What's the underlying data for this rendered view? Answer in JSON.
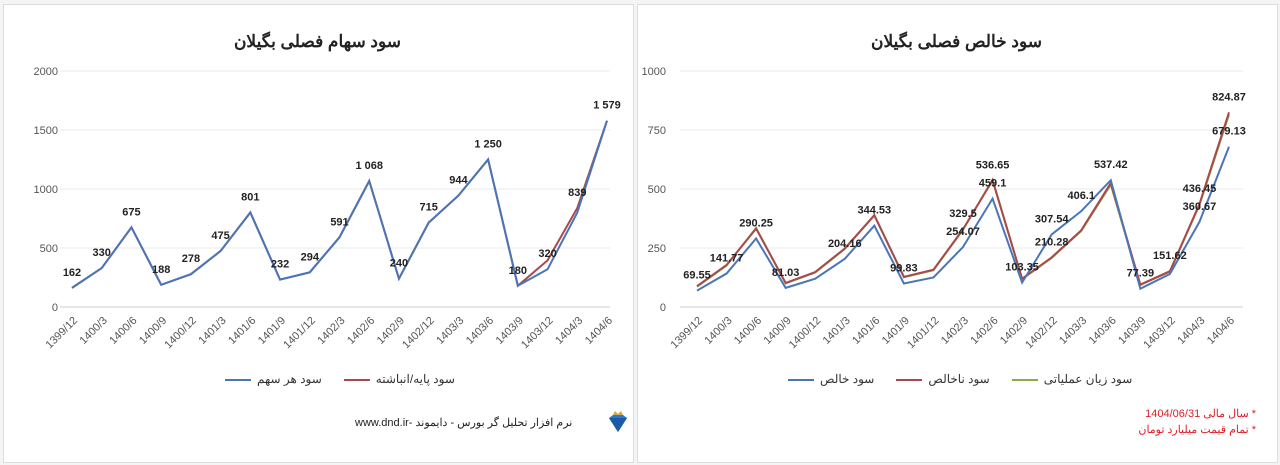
{
  "chart_data": [
    {
      "type": "line",
      "title": "سود سهام فصلی بگیلان",
      "categories": [
        "1399/12",
        "1400/3",
        "1400/6",
        "1400/9",
        "1400/12",
        "1401/3",
        "1401/6",
        "1401/9",
        "1401/12",
        "1402/3",
        "1402/6",
        "1402/9",
        "1402/12",
        "1403/3",
        "1403/6",
        "1403/9",
        "1403/12",
        "1404/3",
        "1404/6"
      ],
      "ylim": [
        0,
        2000
      ],
      "yticks": [
        0,
        500,
        1000,
        1500,
        2000
      ],
      "grid": true,
      "legend": "bottom",
      "series": [
        {
          "name": "سود هر سهم",
          "color": "#4a76b8",
          "values": [
            162,
            330,
            675,
            188,
            278,
            475,
            801,
            232,
            294,
            591,
            1068,
            240,
            715,
            944,
            1250,
            180,
            320,
            800,
            1579
          ]
        },
        {
          "name": "سود پایه/انباشته",
          "color": "#a8494b",
          "values": [
            162,
            330,
            675,
            188,
            278,
            475,
            801,
            232,
            294,
            591,
            1068,
            240,
            715,
            944,
            1250,
            180,
            395,
            839,
            1579
          ]
        }
      ],
      "labels": [
        {
          "i": 0,
          "s": 1,
          "text": "162"
        },
        {
          "i": 1,
          "s": 1,
          "text": "330"
        },
        {
          "i": 2,
          "s": 1,
          "text": "675"
        },
        {
          "i": 3,
          "s": 1,
          "text": "188"
        },
        {
          "i": 4,
          "s": 1,
          "text": "278"
        },
        {
          "i": 5,
          "s": 1,
          "text": "475"
        },
        {
          "i": 6,
          "s": 1,
          "text": "801"
        },
        {
          "i": 7,
          "s": 1,
          "text": "232"
        },
        {
          "i": 8,
          "s": 1,
          "text": "294"
        },
        {
          "i": 9,
          "s": 1,
          "text": "591"
        },
        {
          "i": 10,
          "s": 1,
          "text": "1 068"
        },
        {
          "i": 11,
          "s": 1,
          "text": "240"
        },
        {
          "i": 12,
          "s": 1,
          "text": "715"
        },
        {
          "i": 13,
          "s": 1,
          "text": "944"
        },
        {
          "i": 14,
          "s": 1,
          "text": "1 250"
        },
        {
          "i": 15,
          "s": 1,
          "text": "180"
        },
        {
          "i": 16,
          "s": 0,
          "text": "320"
        },
        {
          "i": 17,
          "s": 1,
          "text": "839"
        },
        {
          "i": 18,
          "s": 1,
          "text": "1 579"
        }
      ]
    },
    {
      "type": "line",
      "title": "سود خالص فصلی بگیلان",
      "categories": [
        "1399/12",
        "1400/3",
        "1400/6",
        "1400/9",
        "1400/12",
        "1401/3",
        "1401/6",
        "1401/9",
        "1401/12",
        "1402/3",
        "1402/6",
        "1402/9",
        "1402/12",
        "1403/3",
        "1403/6",
        "1403/9",
        "1403/12",
        "1404/3",
        "1404/6"
      ],
      "ylim": [
        0,
        1000
      ],
      "yticks": [
        0,
        250,
        500,
        750,
        1000
      ],
      "grid": true,
      "legend": "bottom",
      "series": [
        {
          "name": "سود خالص",
          "color": "#4a76b8",
          "values": [
            69.55,
            141.77,
            290.25,
            81.03,
            120,
            204.16,
            344.53,
            99.83,
            125,
            254.07,
            459.1,
            103.35,
            307.54,
            406.1,
            537.42,
            77.39,
            140,
            360.67,
            679.13
          ]
        },
        {
          "name": "سود ناخالص",
          "color": "#a8494b",
          "values": [
            88,
            178,
            332,
            102,
            148,
            248,
            388,
            128,
            158,
            329.5,
            536.65,
            120,
            210.28,
            325,
            525,
            95,
            151.62,
            436.45,
            824.87
          ]
        },
        {
          "name": "سود زیان عملیاتی",
          "color": "#8faa4a",
          "values": [
            86,
            176,
            335,
            100,
            146,
            246,
            390,
            126,
            156,
            327,
            540,
            118,
            208,
            322,
            518,
            93,
            150,
            432,
            815
          ]
        }
      ],
      "labels": [
        {
          "i": 0,
          "s": 0,
          "text": "69.55"
        },
        {
          "i": 1,
          "s": 0,
          "text": "141.77"
        },
        {
          "i": 2,
          "s": 0,
          "text": "290.25"
        },
        {
          "i": 3,
          "s": 0,
          "text": "81.03"
        },
        {
          "i": 5,
          "s": 0,
          "text": "204.16"
        },
        {
          "i": 6,
          "s": 0,
          "text": "344.53"
        },
        {
          "i": 7,
          "s": 0,
          "text": "99.83"
        },
        {
          "i": 9,
          "s": 1,
          "text": "329.5"
        },
        {
          "i": 9,
          "s": 0,
          "text": "254.07"
        },
        {
          "i": 10,
          "s": 1,
          "text": "536.65"
        },
        {
          "i": 10,
          "s": 0,
          "text": "459.1"
        },
        {
          "i": 11,
          "s": 0,
          "text": "103.35"
        },
        {
          "i": 12,
          "s": 0,
          "text": "307.54"
        },
        {
          "i": 12,
          "s": 1,
          "text": "210.28"
        },
        {
          "i": 13,
          "s": 0,
          "text": "406.1"
        },
        {
          "i": 14,
          "s": 0,
          "text": "537.42"
        },
        {
          "i": 15,
          "s": 0,
          "text": "77.39"
        },
        {
          "i": 16,
          "s": 1,
          "text": "151.62"
        },
        {
          "i": 17,
          "s": 1,
          "text": "436.45"
        },
        {
          "i": 17,
          "s": 0,
          "text": "360.67"
        },
        {
          "i": 18,
          "s": 1,
          "text": "824.87"
        },
        {
          "i": 18,
          "s": 0,
          "text": "679.13"
        }
      ]
    }
  ],
  "footer": {
    "software": "نرم افزار تحلیل گر بورس - دایموند -www.dnd.ir",
    "note1": "* سال مالی 1404/06/31",
    "note2": "* تمام قیمت میلیارد تومان",
    "note_color": "#e0202a"
  }
}
